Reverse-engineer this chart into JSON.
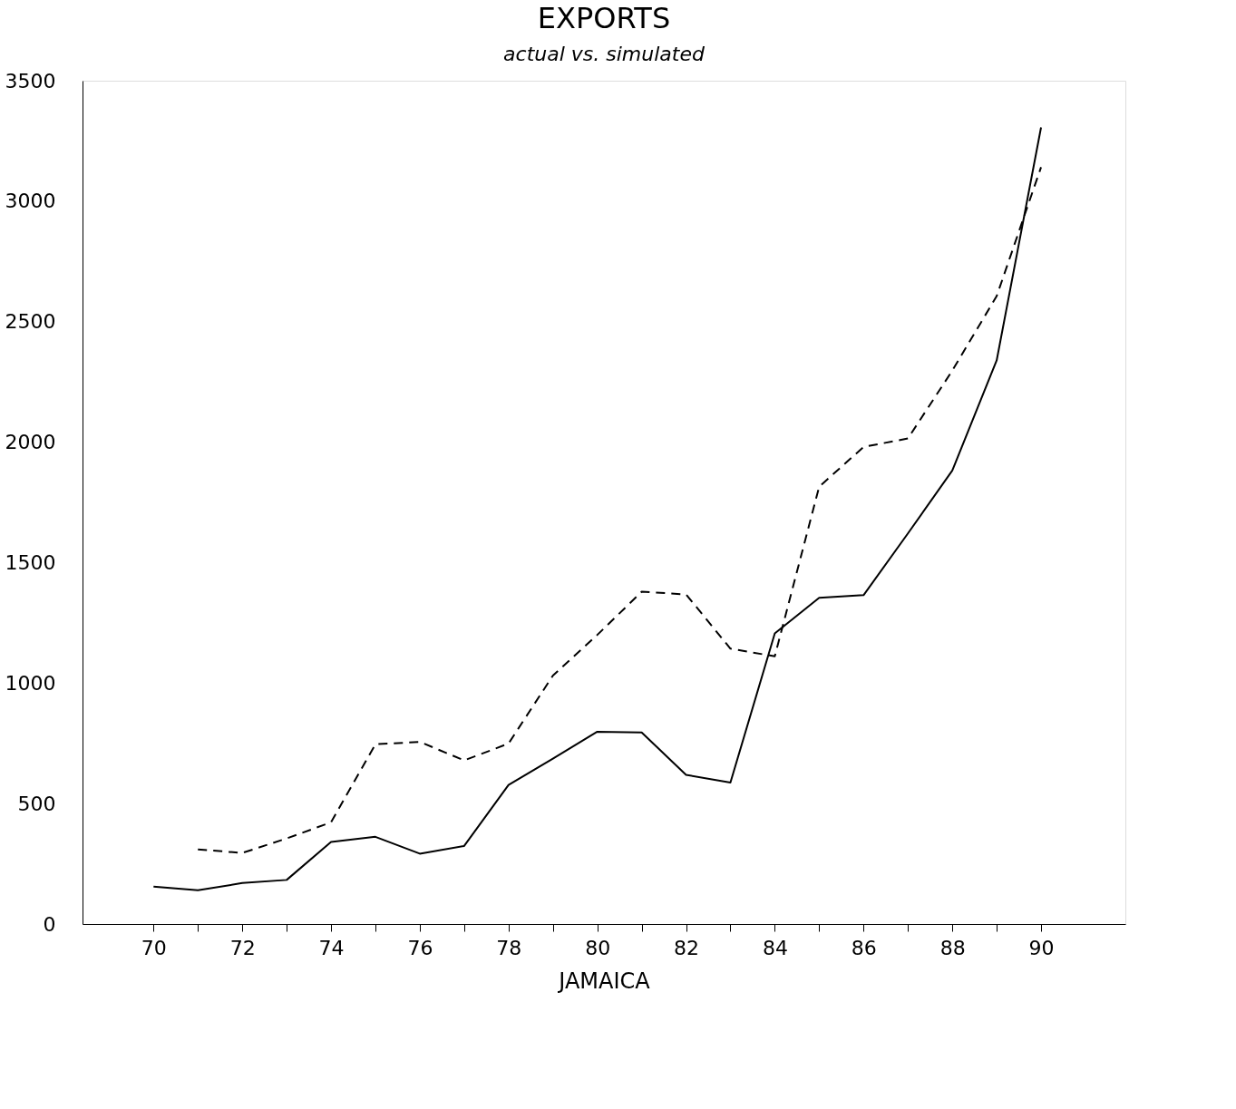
{
  "chart_data": {
    "type": "line",
    "title": "EXPORTS",
    "subtitle": "actual vs. simulated",
    "xlabel": "JAMAICA",
    "x": [
      70,
      71,
      72,
      73,
      74,
      75,
      76,
      77,
      78,
      79,
      80,
      81,
      82,
      83,
      84,
      85,
      86,
      87,
      88,
      89,
      90
    ],
    "series": [
      {
        "color": "#000000",
        "line_style": "solid",
        "values": [
          155,
          140,
          170,
          183,
          341,
          362,
          292,
          324,
          577,
          686,
          798,
          795,
          619,
          587,
          1206,
          1354,
          1365,
          1621,
          1882,
          2339,
          3306
        ]
      },
      {
        "color": "#000000",
        "line_style": "dashed",
        "values": [
          null,
          310,
          295,
          355,
          422,
          746,
          756,
          679,
          749,
          1031,
          1200,
          1379,
          1368,
          1143,
          1111,
          1815,
          1980,
          2015,
          2297,
          2606,
          3141
        ]
      }
    ],
    "xlim": [
      68.4,
      91.9
    ],
    "xticks": [
      70,
      {
        "value": 71,
        "label": null
      },
      72,
      {
        "value": 73,
        "label": null
      },
      74,
      {
        "value": 75,
        "label": null
      },
      76,
      {
        "value": 77,
        "label": null
      },
      78,
      {
        "value": 79,
        "label": null
      },
      80,
      {
        "value": 81,
        "label": null
      },
      82,
      {
        "value": 83,
        "label": null
      },
      84,
      {
        "value": 85,
        "label": null
      },
      86,
      {
        "value": 87,
        "label": null
      },
      88,
      {
        "value": 89,
        "label": null
      },
      90
    ],
    "ylim": [
      0,
      3500
    ],
    "yticks": [
      0,
      500,
      1000,
      1500,
      2000,
      2500,
      3000,
      3500
    ],
    "grid": false,
    "marker": "none"
  }
}
